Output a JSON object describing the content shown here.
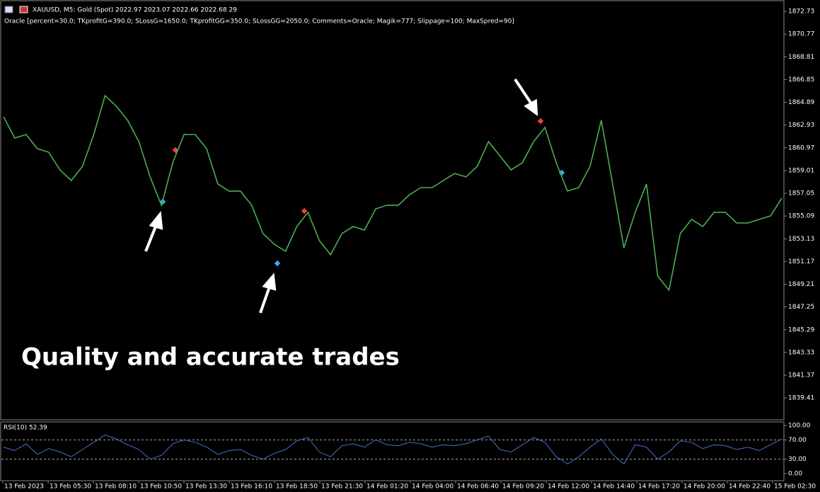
{
  "header": {
    "symbol_line": "XAUUSD, M5:  Gold (Spot)  2022.97 2023.07 2022.66 2022.68  29",
    "indicator_line": "Oracle [percent=30.0; TKprofitG=390.0; SLossG=1650.0; TKprofitGG=350.0; SLossGG=2050.0; Comments=Oracle; Magik=777; Slippage=100; MaxSpred=90]"
  },
  "caption": "Quality and accurate trades",
  "time_labels": [
    "13 Feb 2023",
    "13 Feb 05:30",
    "13 Feb 08:10",
    "13 Feb 10:50",
    "13 Feb 13:30",
    "13 Feb 16:10",
    "13 Feb 18:50",
    "13 Feb 21:30",
    "14 Feb 01:20",
    "14 Feb 04:00",
    "14 Feb 06:40",
    "14 Feb 09:20",
    "14 Feb 12:00",
    "14 Feb 14:40",
    "14 Feb 17:20",
    "14 Feb 20:00",
    "14 Feb 22:40",
    "15 Feb 02:30"
  ],
  "chart_data": [
    {
      "type": "line",
      "color": "#4caf50",
      "values": [
        1863.64,
        1861.81,
        1862.12,
        1860.9,
        1860.59,
        1859.07,
        1858.15,
        1859.37,
        1862.12,
        1865.47,
        1864.56,
        1863.34,
        1861.51,
        1858.46,
        1856.02,
        1859.68,
        1862.12,
        1862.12,
        1860.9,
        1857.85,
        1857.24,
        1857.24,
        1856.02,
        1853.58,
        1852.66,
        1852.05,
        1854.19,
        1855.41,
        1852.97,
        1851.75,
        1853.58,
        1854.19,
        1853.88,
        1855.71,
        1856.02,
        1856.02,
        1856.93,
        1857.54,
        1857.54,
        1858.15,
        1858.76,
        1858.46,
        1859.37,
        1861.51,
        1860.29,
        1859.07,
        1859.68,
        1861.51,
        1862.73,
        1859.68,
        1857.24,
        1857.54,
        1859.37,
        1863.34,
        1857.85,
        1852.36,
        1855.41,
        1857.85,
        1849.92,
        1848.7,
        1853.58,
        1854.8,
        1854.19,
        1855.41,
        1855.41,
        1854.49,
        1854.49,
        1854.8,
        1855.1,
        1856.63
      ],
      "ylim": [
        1837.59,
        1873.71
      ],
      "yticks": [
        1872.73,
        1870.77,
        1868.81,
        1866.85,
        1864.89,
        1862.93,
        1860.97,
        1859.01,
        1857.05,
        1855.09,
        1853.13,
        1851.17,
        1849.21,
        1847.25,
        1845.29,
        1843.33,
        1841.37,
        1839.41
      ]
    },
    {
      "type": "line",
      "title": "RSI(10) 52.39",
      "color": "#4a6fd0",
      "values": [
        55,
        48,
        62,
        40,
        52,
        45,
        35,
        50,
        65,
        80,
        72,
        60,
        50,
        30,
        38,
        62,
        70,
        65,
        55,
        40,
        48,
        50,
        38,
        30,
        42,
        50,
        68,
        75,
        45,
        35,
        58,
        62,
        55,
        70,
        60,
        58,
        65,
        62,
        55,
        60,
        58,
        62,
        70,
        78,
        50,
        45,
        60,
        75,
        65,
        35,
        20,
        35,
        55,
        72,
        40,
        20,
        60,
        55,
        30,
        45,
        68,
        65,
        52,
        60,
        58,
        50,
        55,
        48,
        60,
        72
      ],
      "ylim": [
        -16.2,
        107.4
      ],
      "yticks": [
        {
          "value": 100,
          "label": "100.00"
        },
        {
          "value": 70,
          "label": "70.00"
        },
        {
          "value": 30,
          "label": "30.00"
        },
        {
          "value": 0,
          "label": "0.00"
        }
      ],
      "levels": [
        70,
        30
      ]
    }
  ]
}
